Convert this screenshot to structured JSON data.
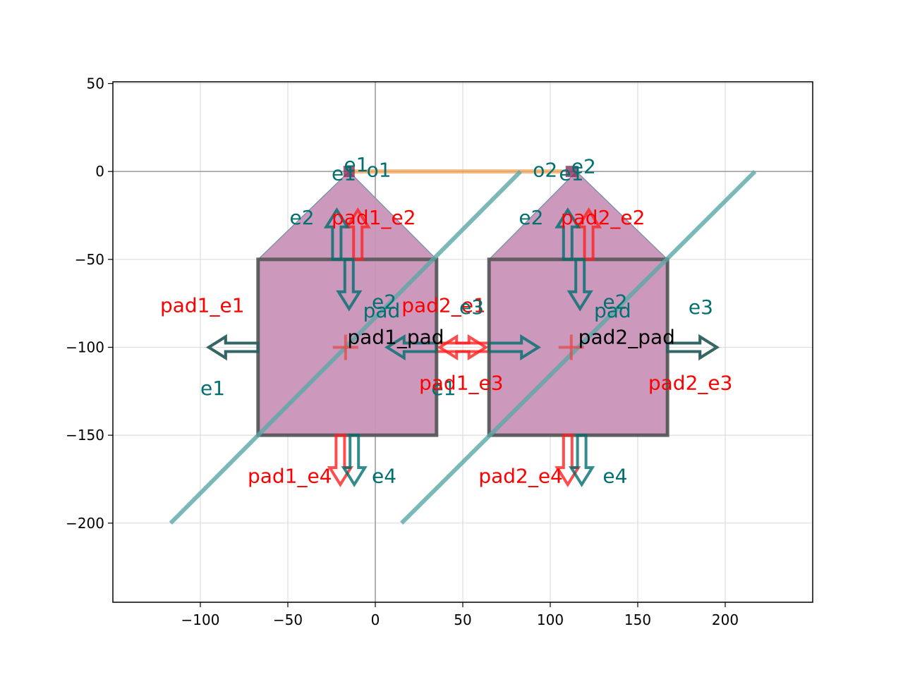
{
  "chart_data": {
    "type": "diagram",
    "xlim": [
      -150,
      250
    ],
    "ylim": [
      -245,
      51
    ],
    "xticks": [
      -100,
      -50,
      0,
      50,
      100,
      150,
      200
    ],
    "yticks": [
      50,
      0,
      -50,
      -100,
      -150,
      -200
    ],
    "grid": true,
    "colors": {
      "pad_fill": "#c993b8",
      "pad_outline": "#555555",
      "electrical_port": "#ff2020",
      "optical_port": "#006e6e",
      "diagonal": "#5aa8a6",
      "route": "#f5a55a",
      "axis_line": "#999999"
    },
    "shapes": [
      {
        "name": "pad1",
        "points": [
          [
            -67,
            -150
          ],
          [
            -67,
            -50
          ],
          [
            -15,
            0
          ],
          [
            35,
            -50
          ],
          [
            35,
            -150
          ]
        ],
        "rect": {
          "x0": -67,
          "x1": 35,
          "y0": -150,
          "y1": -50
        }
      },
      {
        "name": "pad2",
        "points": [
          [
            65,
            -150
          ],
          [
            65,
            -50
          ],
          [
            115,
            0
          ],
          [
            167,
            -50
          ],
          [
            167,
            -150
          ]
        ],
        "rect": {
          "x0": 65,
          "x1": 167,
          "y0": -150,
          "y1": -50
        }
      }
    ],
    "diagonals": [
      {
        "x": [
          -117,
          83
        ],
        "y": [
          -200,
          0
        ]
      },
      {
        "x": [
          15,
          217
        ],
        "y": [
          -200,
          0
        ]
      }
    ],
    "route": {
      "x": [
        -15,
        107
      ],
      "y": [
        0,
        0
      ]
    },
    "arrows": [
      {
        "x": -67,
        "y": -100,
        "dir": "left",
        "kind": "electrical"
      },
      {
        "x": -67,
        "y": -100,
        "dir": "left",
        "kind": "optical"
      },
      {
        "x": 35,
        "y": -100,
        "dir": "right",
        "kind": "electrical"
      },
      {
        "x": 35,
        "y": -100,
        "dir": "left",
        "kind": "optical"
      },
      {
        "x": 65,
        "y": -100,
        "dir": "left",
        "kind": "electrical"
      },
      {
        "x": 65,
        "y": -100,
        "dir": "right",
        "kind": "optical"
      },
      {
        "x": 167,
        "y": -100,
        "dir": "right",
        "kind": "electrical"
      },
      {
        "x": 167,
        "y": -100,
        "dir": "right",
        "kind": "optical"
      },
      {
        "x": -10,
        "y": -50,
        "dir": "up",
        "kind": "electrical"
      },
      {
        "x": -22,
        "y": -50,
        "dir": "up",
        "kind": "optical"
      },
      {
        "x": -15,
        "y": -50,
        "dir": "down",
        "kind": "optical"
      },
      {
        "x": 122,
        "y": -50,
        "dir": "up",
        "kind": "electrical"
      },
      {
        "x": 110,
        "y": -50,
        "dir": "up",
        "kind": "optical"
      },
      {
        "x": 117,
        "y": -50,
        "dir": "down",
        "kind": "optical"
      },
      {
        "x": -20,
        "y": -150,
        "dir": "down",
        "kind": "electrical"
      },
      {
        "x": -12,
        "y": -150,
        "dir": "down",
        "kind": "optical"
      },
      {
        "x": 110,
        "y": -150,
        "dir": "down",
        "kind": "electrical"
      },
      {
        "x": 118,
        "y": -150,
        "dir": "down",
        "kind": "optical"
      }
    ],
    "crosses": [
      [
        -17,
        -100
      ],
      [
        112,
        -100
      ]
    ],
    "labels": [
      {
        "text": "e1",
        "x": -18,
        "y": 0,
        "kind": "optical"
      },
      {
        "text": "e1",
        "x": -25,
        "y": -5,
        "kind": "optical"
      },
      {
        "text": "o1",
        "x": -5,
        "y": -3,
        "kind": "optical"
      },
      {
        "text": "o2",
        "x": 90,
        "y": -3,
        "kind": "optical"
      },
      {
        "text": "e1",
        "x": 105,
        "y": -5,
        "kind": "optical"
      },
      {
        "text": "e2",
        "x": 112,
        "y": -1,
        "kind": "optical"
      },
      {
        "text": "e2",
        "x": -49,
        "y": -30,
        "kind": "optical"
      },
      {
        "text": "pad1_e2",
        "x": -25,
        "y": -30,
        "kind": "electrical"
      },
      {
        "text": "e2",
        "x": 82,
        "y": -30,
        "kind": "optical"
      },
      {
        "text": "pad2_e2",
        "x": 106,
        "y": -30,
        "kind": "electrical"
      },
      {
        "text": "pad1_e1",
        "x": -123,
        "y": -80,
        "kind": "electrical"
      },
      {
        "text": "e2",
        "x": -2,
        "y": -78,
        "kind": "optical"
      },
      {
        "text": "pad",
        "x": -7,
        "y": -83,
        "kind": "optical"
      },
      {
        "text": "pad2_e1",
        "x": 15,
        "y": -80,
        "kind": "electrical"
      },
      {
        "text": "e3",
        "x": 48,
        "y": -81,
        "kind": "optical"
      },
      {
        "text": "e2",
        "x": 130,
        "y": -78,
        "kind": "optical"
      },
      {
        "text": "pad",
        "x": 125,
        "y": -83,
        "kind": "optical"
      },
      {
        "text": "e3",
        "x": 179,
        "y": -81,
        "kind": "optical"
      },
      {
        "text": "pad1_pad",
        "x": -16,
        "y": -98,
        "kind": "pad"
      },
      {
        "text": "pad2_pad",
        "x": 116,
        "y": -98,
        "kind": "pad"
      },
      {
        "text": "e1",
        "x": -100,
        "y": -127,
        "kind": "optical"
      },
      {
        "text": "e1",
        "x": 32,
        "y": -127,
        "kind": "optical"
      },
      {
        "text": "pad1_e3",
        "x": 25,
        "y": -124,
        "kind": "electrical"
      },
      {
        "text": "pad2_e3",
        "x": 156,
        "y": -124,
        "kind": "electrical"
      },
      {
        "text": "pad1_e4",
        "x": -73,
        "y": -177,
        "kind": "electrical"
      },
      {
        "text": "e4",
        "x": -2,
        "y": -177,
        "kind": "optical"
      },
      {
        "text": "pad2_e4",
        "x": 59,
        "y": -177,
        "kind": "electrical"
      },
      {
        "text": "e4",
        "x": 130,
        "y": -177,
        "kind": "optical"
      }
    ]
  }
}
